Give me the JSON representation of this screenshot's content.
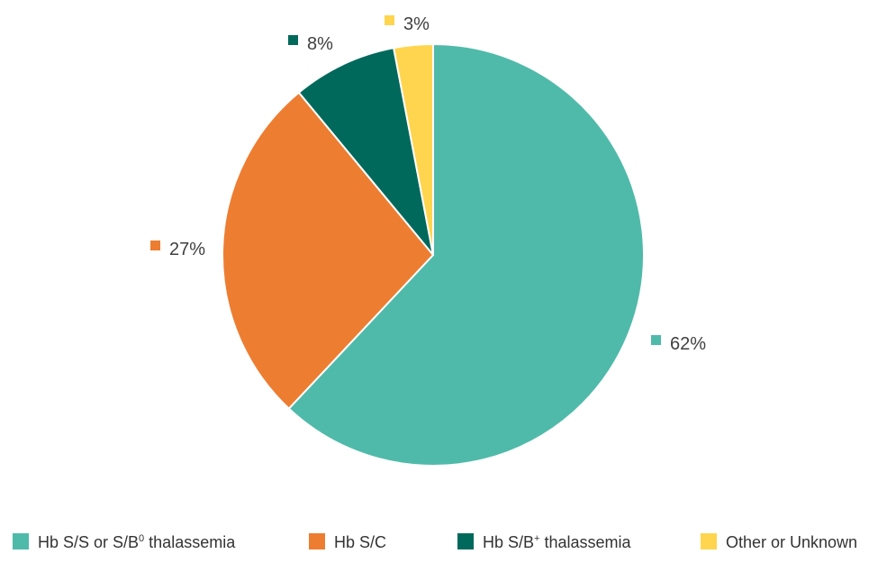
{
  "chart_data": {
    "type": "pie",
    "title": "",
    "start_angle_deg": 0,
    "direction": "clockwise",
    "legend_position": "bottom",
    "slices": [
      {
        "label": "Hb S/S or S/B",
        "label_sup": "0",
        "label_suffix": " thalassemia",
        "value": 62,
        "display": "62%",
        "color": "#4FBAAA"
      },
      {
        "label": "Hb S/C",
        "label_sup": "",
        "label_suffix": "",
        "value": 27,
        "display": "27%",
        "color": "#ED7D31"
      },
      {
        "label": "Hb S/B",
        "label_sup": "+",
        "label_suffix": " thalassemia",
        "value": 8,
        "display": "8%",
        "color": "#00695C"
      },
      {
        "label": "Other or Unknown",
        "label_sup": "",
        "label_suffix": "",
        "value": 3,
        "display": "3%",
        "color": "#FFD54F"
      }
    ]
  }
}
